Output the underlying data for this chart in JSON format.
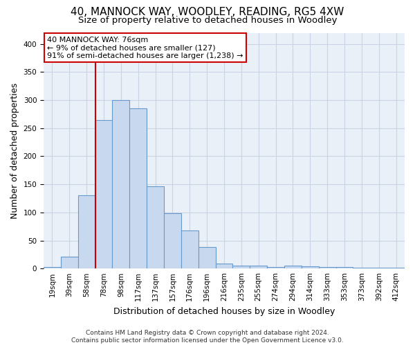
{
  "title": "40, MANNOCK WAY, WOODLEY, READING, RG5 4XW",
  "subtitle": "Size of property relative to detached houses in Woodley",
  "xlabel": "Distribution of detached houses by size in Woodley",
  "ylabel": "Number of detached properties",
  "categories": [
    "19sqm",
    "39sqm",
    "58sqm",
    "78sqm",
    "98sqm",
    "117sqm",
    "137sqm",
    "157sqm",
    "176sqm",
    "196sqm",
    "216sqm",
    "235sqm",
    "255sqm",
    "274sqm",
    "294sqm",
    "314sqm",
    "333sqm",
    "353sqm",
    "373sqm",
    "392sqm",
    "412sqm"
  ],
  "values": [
    3,
    21,
    130,
    265,
    300,
    286,
    147,
    98,
    68,
    38,
    9,
    5,
    5,
    3,
    5,
    4,
    3,
    3,
    2,
    1,
    1
  ],
  "bar_color": "#c8d8ee",
  "bar_edge_color": "#6699cc",
  "vline_color": "#cc0000",
  "annotation_text": "40 MANNOCK WAY: 76sqm\n← 9% of detached houses are smaller (127)\n91% of semi-detached houses are larger (1,238) →",
  "annotation_box_color": "#ffffff",
  "annotation_box_edge": "#cc0000",
  "background_color": "#ffffff",
  "plot_bg_color": "#eaf0f8",
  "grid_color": "#c8d4e4",
  "title_fontsize": 11,
  "subtitle_fontsize": 9.5,
  "xlabel_fontsize": 9,
  "ylabel_fontsize": 9,
  "tick_fontsize": 7.5,
  "annotation_fontsize": 8,
  "footer_text": "Contains HM Land Registry data © Crown copyright and database right 2024.\nContains public sector information licensed under the Open Government Licence v3.0.",
  "footer_fontsize": 6.5,
  "ylim": [
    0,
    420
  ],
  "vline_index": 3
}
